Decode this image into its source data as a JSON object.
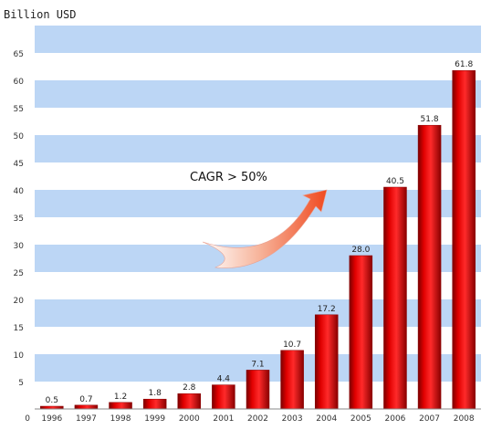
{
  "chart_data": {
    "type": "bar",
    "categories": [
      "1996",
      "1997",
      "1998",
      "1999",
      "2000",
      "2001",
      "2002",
      "2003",
      "2004",
      "2005",
      "2006",
      "2007",
      "2008"
    ],
    "values": [
      0.5,
      0.7,
      1.2,
      1.8,
      2.8,
      4.4,
      7.1,
      10.7,
      17.2,
      28.0,
      40.5,
      51.8,
      61.8
    ],
    "value_labels": [
      "0.5",
      "0.7",
      "1.2",
      "1.8",
      "2.8",
      "4.4",
      "7.1",
      "10.7",
      "17.2",
      "28.0",
      "40.5",
      "51.8",
      "61.8"
    ],
    "ylabel": "Billion USD",
    "yticks": [
      "0",
      "5",
      "10",
      "15",
      "20",
      "25",
      "30",
      "35",
      "40",
      "45",
      "50",
      "55",
      "60",
      "65"
    ],
    "ylim": [
      0,
      70
    ],
    "annotation": "CAGR > 50%",
    "grid": "horizontal bands",
    "colors": {
      "bar": "#e00000",
      "bar_dark": "#8a0000",
      "band": "#bcd6f5",
      "arrow": "#f05a32"
    }
  }
}
